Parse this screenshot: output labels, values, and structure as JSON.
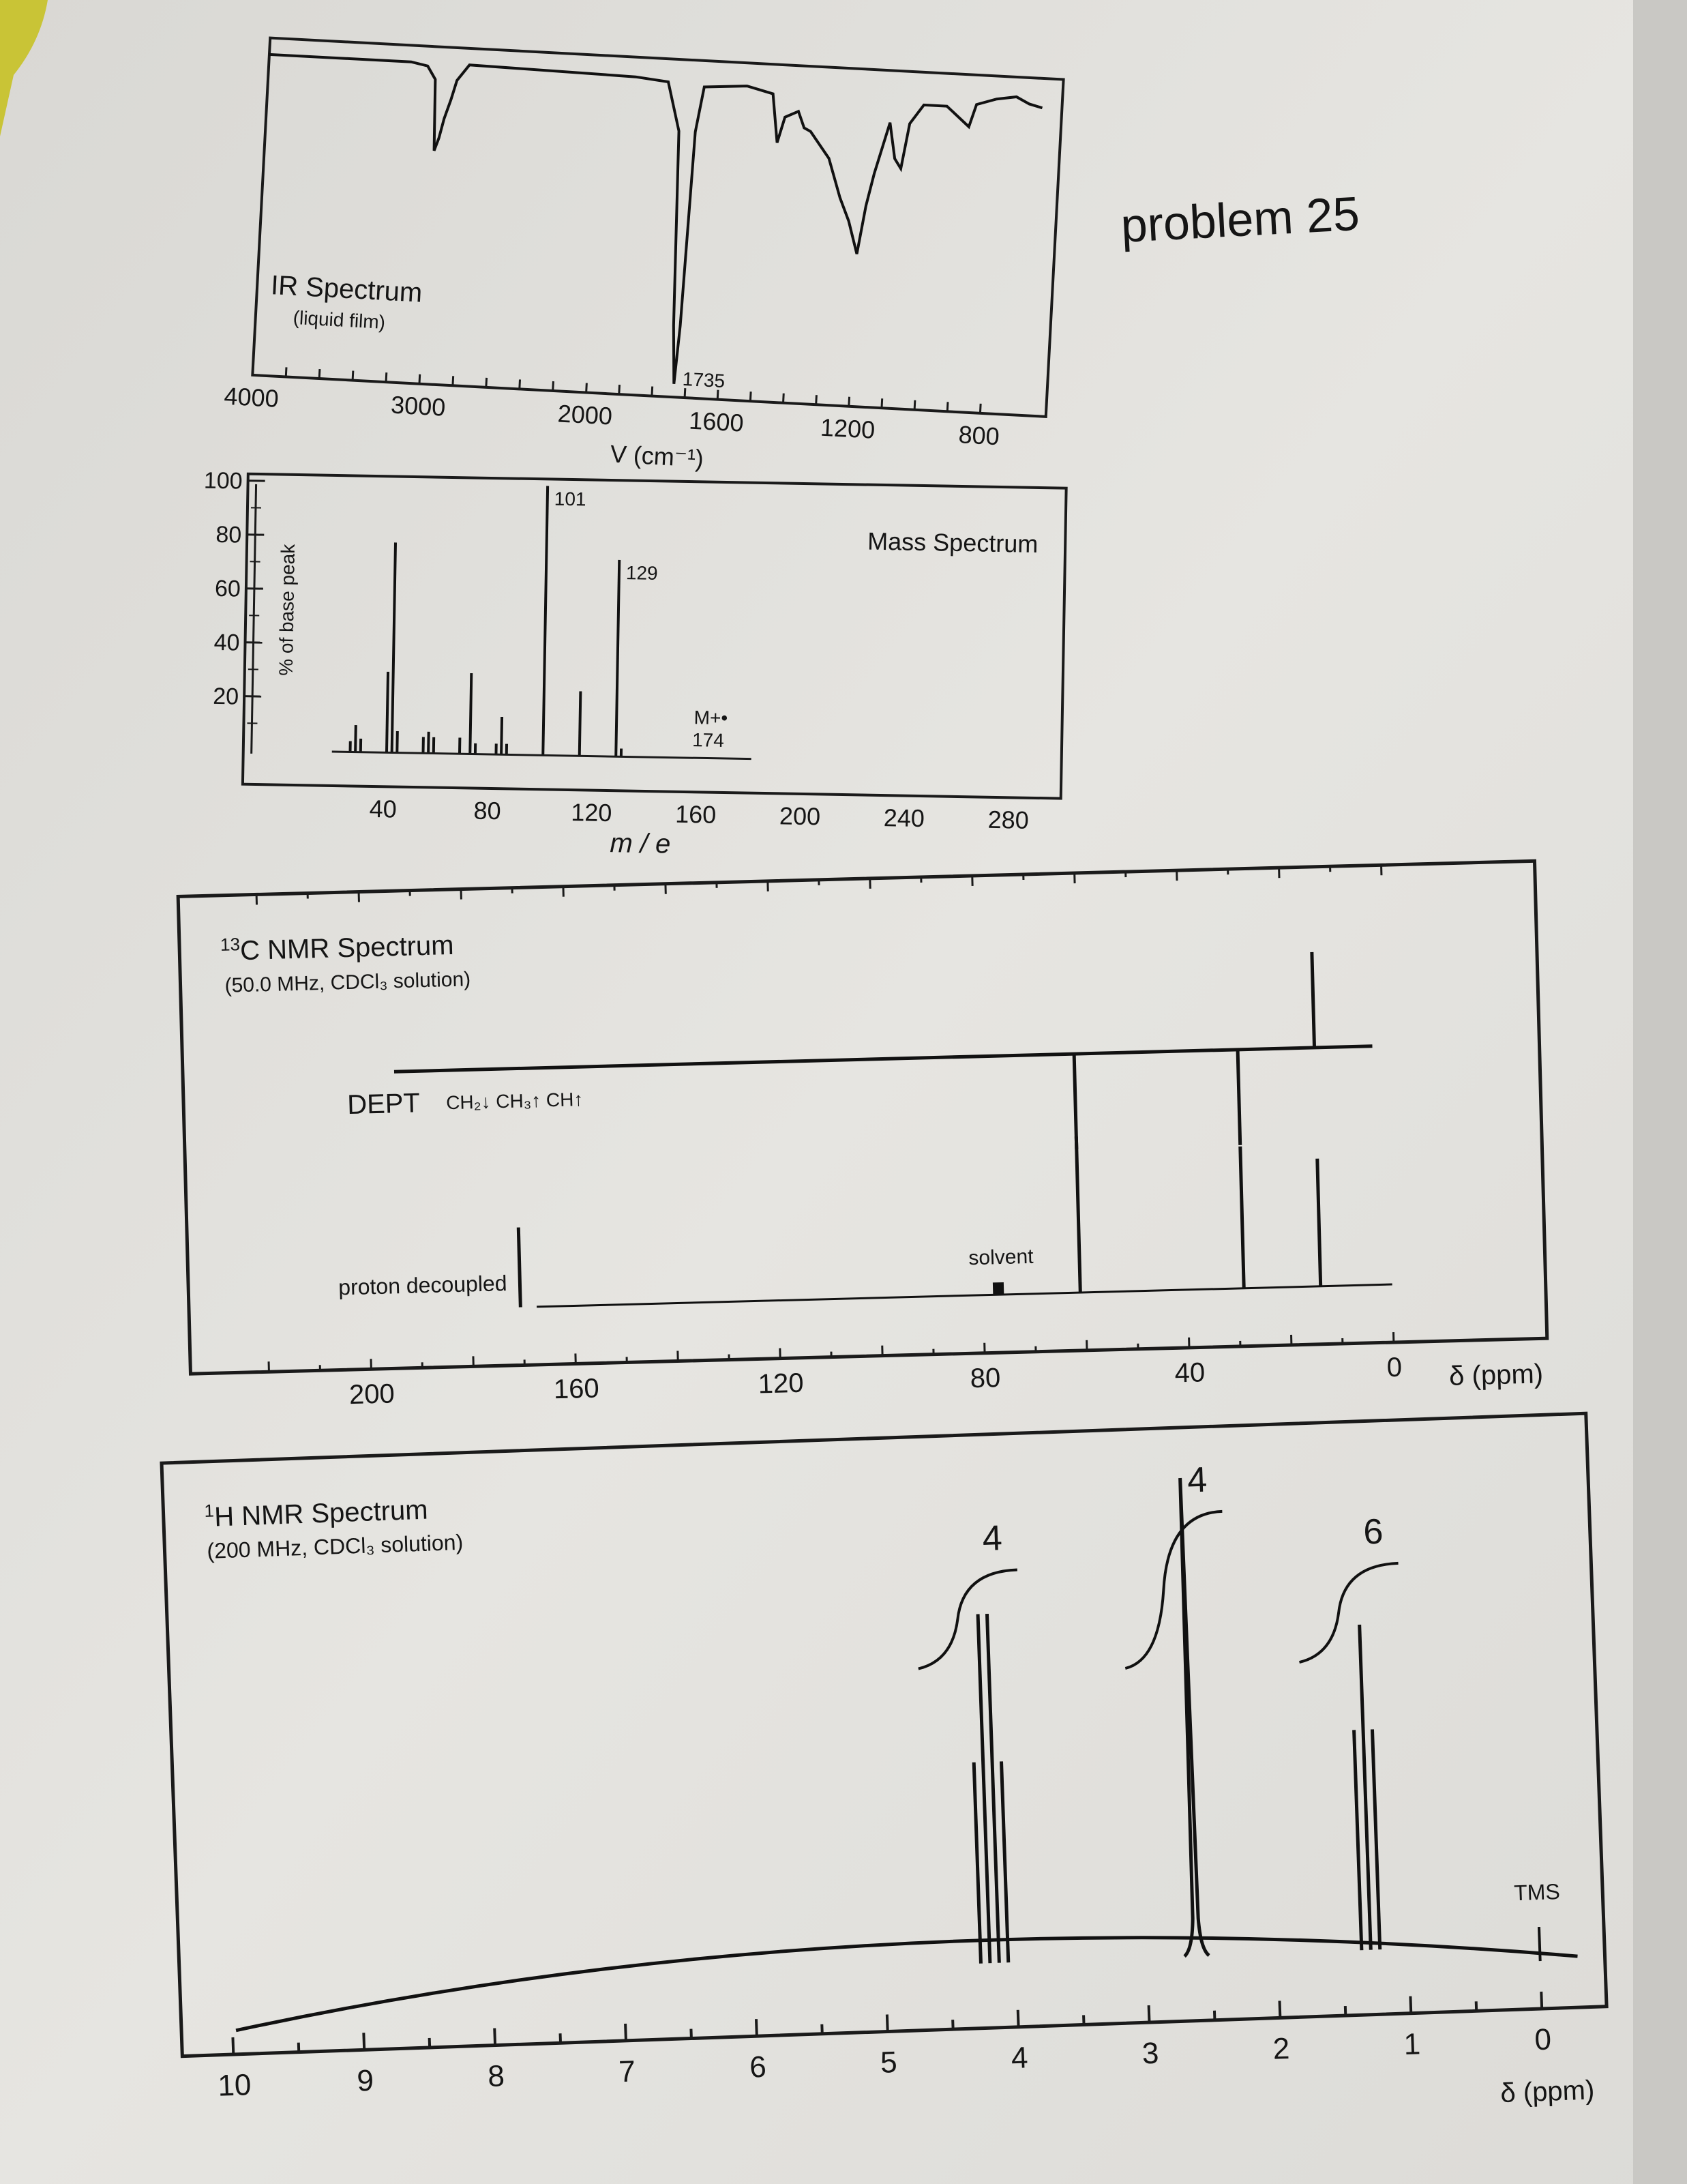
{
  "problem_label": "problem 25",
  "chart_data": [
    {
      "id": "ir",
      "type": "line",
      "title": "IR Spectrum",
      "subtitle": "(liquid film)",
      "xlabel": "V (cm⁻¹)",
      "ylabel": "",
      "x_ticks": [
        "4000",
        "3000",
        "2000",
        "1600",
        "1200",
        "800"
      ],
      "xlim": [
        4000,
        600
      ],
      "peak_label": "1735",
      "points": [
        [
          4000,
          97
        ],
        [
          3150,
          97
        ],
        [
          3050,
          96
        ],
        [
          3000,
          92
        ],
        [
          2985,
          70
        ],
        [
          2960,
          74
        ],
        [
          2935,
          80
        ],
        [
          2900,
          86
        ],
        [
          2870,
          92
        ],
        [
          2800,
          97
        ],
        [
          1900,
          96
        ],
        [
          1800,
          95
        ],
        [
          1760,
          80
        ],
        [
          1745,
          20
        ],
        [
          1735,
          2
        ],
        [
          1725,
          20
        ],
        [
          1710,
          80
        ],
        [
          1690,
          94
        ],
        [
          1560,
          95
        ],
        [
          1480,
          93
        ],
        [
          1460,
          78
        ],
        [
          1440,
          86
        ],
        [
          1400,
          88
        ],
        [
          1380,
          83
        ],
        [
          1360,
          82
        ],
        [
          1300,
          74
        ],
        [
          1260,
          62
        ],
        [
          1230,
          55
        ],
        [
          1200,
          45
        ],
        [
          1180,
          60
        ],
        [
          1160,
          70
        ],
        [
          1120,
          86
        ],
        [
          1100,
          75
        ],
        [
          1080,
          72
        ],
        [
          1060,
          86
        ],
        [
          1020,
          92
        ],
        [
          950,
          92
        ],
        [
          880,
          86
        ],
        [
          860,
          93
        ],
        [
          800,
          95
        ],
        [
          740,
          96
        ],
        [
          700,
          94
        ],
        [
          660,
          93
        ]
      ]
    },
    {
      "id": "mass",
      "type": "bar",
      "title": "Mass Spectrum",
      "xlabel": "m / e",
      "ylabel": "% of base peak",
      "y_ticks": [
        "100",
        "80",
        "60",
        "40",
        "20"
      ],
      "x_ticks": [
        "40",
        "80",
        "120",
        "160",
        "200",
        "240",
        "280"
      ],
      "ylim": [
        0,
        100
      ],
      "xlim": [
        20,
        300
      ],
      "peaks": [
        [
          27,
          4
        ],
        [
          29,
          10
        ],
        [
          31,
          5
        ],
        [
          41,
          30
        ],
        [
          43,
          78
        ],
        [
          45,
          8
        ],
        [
          55,
          6
        ],
        [
          57,
          8
        ],
        [
          59,
          6
        ],
        [
          69,
          6
        ],
        [
          73,
          30
        ],
        [
          75,
          4
        ],
        [
          83,
          4
        ],
        [
          85,
          14
        ],
        [
          87,
          4
        ],
        [
          101,
          100
        ],
        [
          115,
          24
        ],
        [
          129,
          73
        ],
        [
          131,
          3
        ]
      ],
      "labels": [
        {
          "mz": 101,
          "text": "101"
        },
        {
          "mz": 129,
          "text": "129"
        }
      ],
      "molecular_ion": {
        "mz": 174,
        "label_top": "M+•",
        "label_bottom": "174"
      }
    },
    {
      "id": "c13",
      "type": "bar",
      "title": "13C NMR Spectrum",
      "title_sup": "13",
      "title_rest": "C NMR Spectrum",
      "subtitle": "(50.0 MHz, CDCl₃ solution)",
      "xlabel": "δ (ppm)",
      "x_ticks": [
        "200",
        "160",
        "120",
        "80",
        "40",
        "0"
      ],
      "xlim": [
        220,
        0
      ],
      "dept_label": "DEPT",
      "dept_legend": "CH₂↓ CH₃↑ CH↑",
      "decoupled_label": "proton decoupled",
      "solvent_label": "solvent",
      "decoupled_peaks": [
        [
          170.5,
          45
        ],
        [
          77,
          8
        ],
        [
          61,
          88
        ],
        [
          29,
          80
        ],
        [
          14,
          72
        ]
      ],
      "dept_peaks": [
        [
          61,
          -100
        ],
        [
          29,
          -100
        ],
        [
          14,
          100
        ]
      ]
    },
    {
      "id": "h1",
      "type": "bar",
      "title": "1H NMR Spectrum",
      "title_sup": "1",
      "title_rest": "H NMR Spectrum",
      "subtitle": "(200 MHz, CDCl₃ solution)",
      "xlabel": "δ (ppm)",
      "x_ticks": [
        "10",
        "9",
        "8",
        "7",
        "6",
        "5",
        "4",
        "3",
        "2",
        "1",
        "0"
      ],
      "xlim": [
        10,
        0
      ],
      "tms_label": "TMS",
      "peaks": [
        [
          4.27,
          40
        ],
        [
          4.2,
          71
        ],
        [
          4.13,
          71
        ],
        [
          4.06,
          40
        ],
        [
          2.62,
          98
        ],
        [
          1.36,
          44
        ],
        [
          1.29,
          66
        ],
        [
          1.22,
          44
        ],
        [
          0,
          5
        ]
      ],
      "integrals": [
        {
          "delta": 4.2,
          "text": "4"
        },
        {
          "delta": 2.62,
          "text": "4"
        },
        {
          "delta": 1.29,
          "text": "6"
        }
      ]
    }
  ]
}
